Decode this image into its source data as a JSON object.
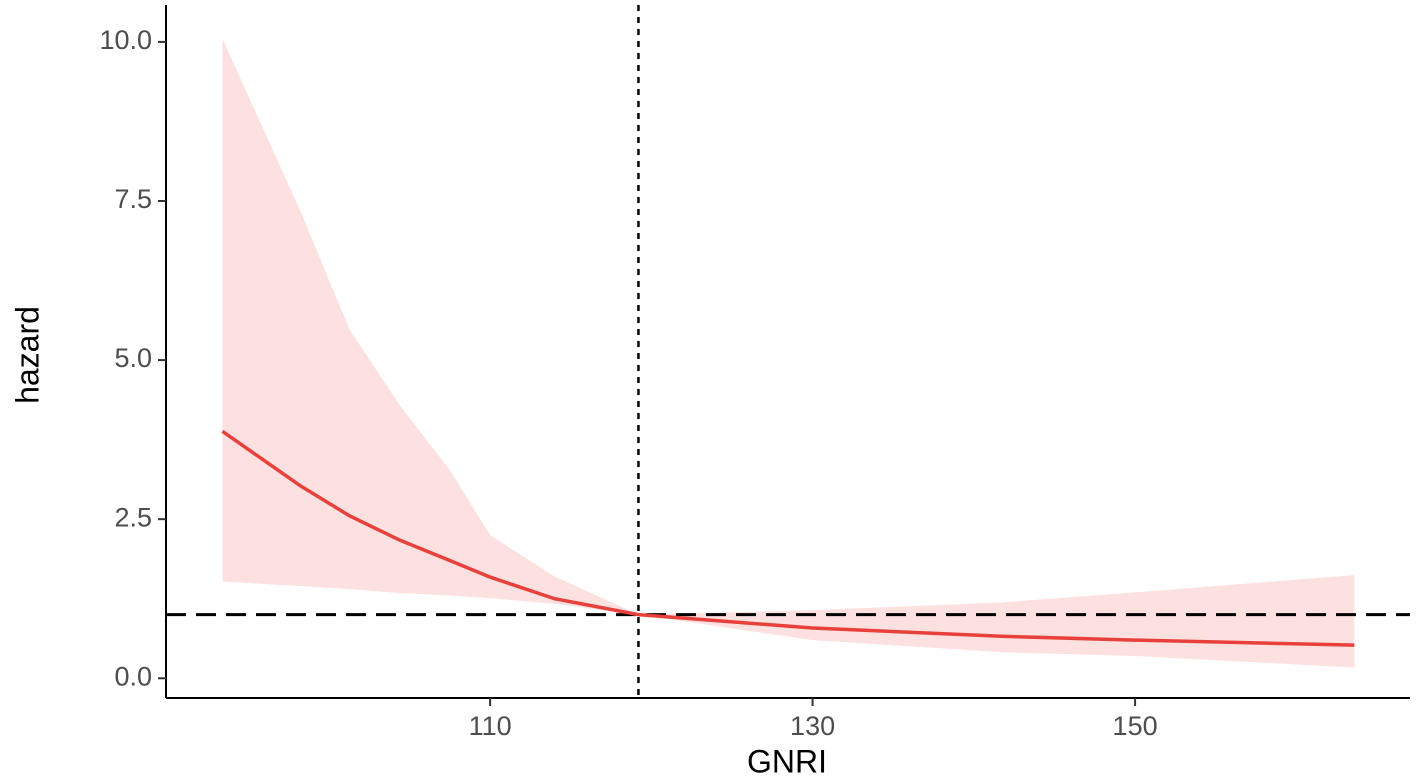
{
  "chart_data": {
    "type": "line",
    "x_label": "GNRI",
    "y_label": "hazard",
    "x": [
      93.4,
      98.2,
      101.3,
      104.4,
      107.5,
      110,
      114,
      119.2,
      130,
      141.7,
      150,
      163.6
    ],
    "values": [
      3.88,
      3.03,
      2.55,
      2.17,
      1.85,
      1.59,
      1.25,
      1.0,
      0.79,
      0.66,
      0.6,
      0.52
    ],
    "upper": [
      10.05,
      7.36,
      5.47,
      4.29,
      3.27,
      2.25,
      1.6,
      1.0,
      1.07,
      1.19,
      1.35,
      1.62
    ],
    "lower": [
      1.52,
      1.45,
      1.4,
      1.34,
      1.3,
      1.26,
      1.17,
      1.0,
      0.6,
      0.41,
      0.35,
      0.17
    ],
    "color": "#e8413c",
    "band_color": "#fde0e0",
    "vline": 119.2,
    "hline": 1,
    "xlim": [
      89.9,
      167.05
    ],
    "ylim": [
      -0.31,
      10.58
    ],
    "xticks": [
      110,
      130,
      150
    ],
    "yticks": [
      {
        "value": 0,
        "label": "0.0"
      },
      {
        "value": 2.5,
        "label": "2.5"
      },
      {
        "value": 5,
        "label": "5.0"
      },
      {
        "value": 7.5,
        "label": "7.5"
      },
      {
        "value": 10,
        "label": "10.0"
      }
    ]
  }
}
